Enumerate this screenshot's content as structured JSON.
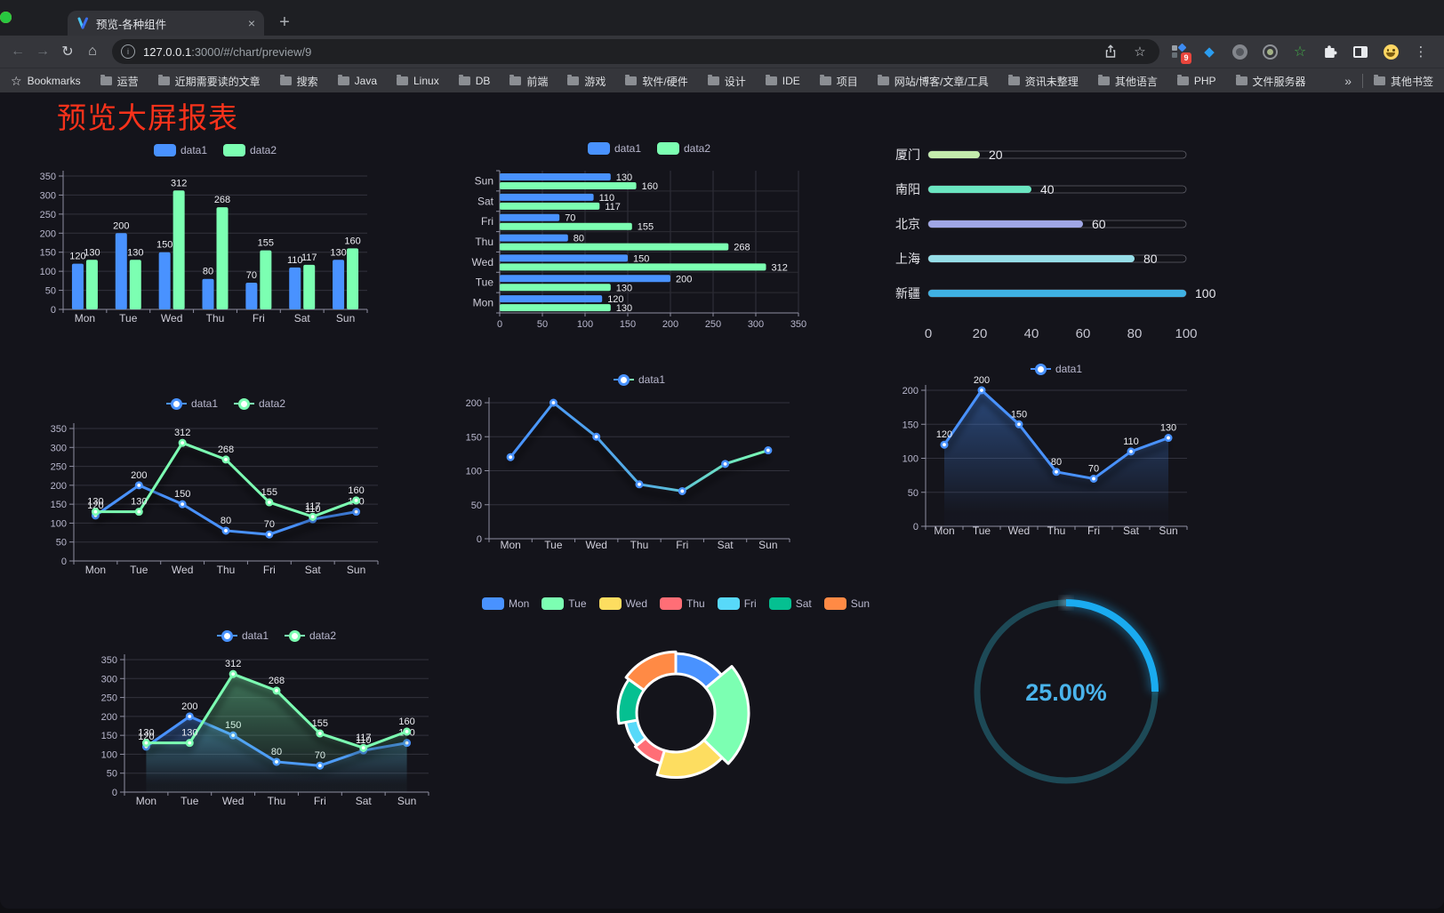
{
  "browser": {
    "window_controls": {
      "close": "#ff5f57",
      "minimize": "#febc2e",
      "zoom": "#28c840"
    },
    "tab": {
      "title": "预览-各种组件",
      "close_icon": "×"
    },
    "new_tab_icon": "+",
    "icons": {
      "back": "←",
      "forward": "→",
      "reload": "↻",
      "home": "⌂",
      "star": "☆",
      "green_star": "☆",
      "gem": "◆",
      "menu": "⋮",
      "info": "i"
    },
    "toolbar": {
      "url_host": "127.0.0.1",
      "url_path": ":3000/#/chart/preview/9",
      "extension_badge": "9"
    },
    "bookmarks_bar": {
      "label": "Bookmarks",
      "folders": [
        "运营",
        "近期需要读的文章",
        "搜索",
        "Java",
        "Linux",
        "DB",
        "前端",
        "游戏",
        "软件/硬件",
        "设计",
        "IDE",
        "项目",
        "网站/博客/文章/工具",
        "资讯未整理",
        "其他语言",
        "PHP",
        "文件服务器"
      ],
      "overflow": "»",
      "other_bookmarks": "其他书签"
    }
  },
  "page": {
    "title": "预览大屏报表",
    "title_color": "#f8321b",
    "background": "#14141b"
  },
  "chart_data": [
    {
      "id": "bar-vertical-grouped",
      "type": "bar",
      "categories": [
        "Mon",
        "Tue",
        "Wed",
        "Thu",
        "Fri",
        "Sat",
        "Sun"
      ],
      "series": [
        {
          "name": "data1",
          "color": "#4992ff",
          "values": [
            120,
            200,
            150,
            80,
            70,
            110,
            130
          ]
        },
        {
          "name": "data2",
          "color": "#7cffb2",
          "values": [
            130,
            130,
            312,
            268,
            155,
            117,
            160
          ]
        }
      ],
      "ylim": [
        0,
        350
      ],
      "yticks": [
        0,
        50,
        100,
        150,
        200,
        250,
        300,
        350
      ],
      "legend_position": "top",
      "grid": true,
      "point_labels": true
    },
    {
      "id": "bar-horizontal-grouped",
      "type": "bar",
      "orientation": "horizontal",
      "categories": [
        "Mon",
        "Tue",
        "Wed",
        "Thu",
        "Fri",
        "Sat",
        "Sun"
      ],
      "series": [
        {
          "name": "data1",
          "color": "#4992ff",
          "values": [
            120,
            200,
            150,
            80,
            70,
            110,
            130
          ]
        },
        {
          "name": "data2",
          "color": "#7cffb2",
          "values": [
            130,
            130,
            312,
            268,
            155,
            117,
            160
          ]
        }
      ],
      "xlim": [
        0,
        350
      ],
      "xticks": [
        0,
        50,
        100,
        150,
        200,
        250,
        300,
        350
      ],
      "legend_position": "top",
      "grid": true,
      "point_labels": true
    },
    {
      "id": "progress-bars",
      "type": "bar",
      "orientation": "horizontal",
      "categories": [
        "厦门",
        "南阳",
        "北京",
        "上海",
        "新疆"
      ],
      "values": [
        20,
        40,
        60,
        80,
        100
      ],
      "colors": [
        "#c4ebad",
        "#6be6c1",
        "#a0a7e6",
        "#96dee8",
        "#3fb1e3"
      ],
      "xlim": [
        0,
        100
      ],
      "xticks": [
        0,
        20,
        40,
        60,
        80,
        100
      ],
      "grid": false,
      "point_labels": true
    },
    {
      "id": "line-two-series",
      "type": "line",
      "categories": [
        "Mon",
        "Tue",
        "Wed",
        "Thu",
        "Fri",
        "Sat",
        "Sun"
      ],
      "series": [
        {
          "name": "data1",
          "color": "#4992ff",
          "values": [
            120,
            200,
            150,
            80,
            70,
            110,
            130
          ]
        },
        {
          "name": "data2",
          "color": "#7cffb2",
          "values": [
            130,
            130,
            312,
            268,
            155,
            117,
            160
          ]
        }
      ],
      "ylim": [
        0,
        350
      ],
      "yticks": [
        0,
        50,
        100,
        150,
        200,
        250,
        300,
        350
      ],
      "legend_position": "top",
      "grid": true,
      "point_labels": true
    },
    {
      "id": "line-gradient",
      "type": "line",
      "categories": [
        "Mon",
        "Tue",
        "Wed",
        "Thu",
        "Fri",
        "Sat",
        "Sun"
      ],
      "series": [
        {
          "name": "data1",
          "color_start": "#4992ff",
          "color_end": "#7cffb2",
          "values": [
            120,
            200,
            150,
            80,
            70,
            110,
            130
          ]
        }
      ],
      "ylim": [
        0,
        200
      ],
      "yticks": [
        0,
        50,
        100,
        150,
        200
      ],
      "legend_position": "top",
      "grid": true,
      "point_labels": false
    },
    {
      "id": "area-single",
      "type": "area",
      "categories": [
        "Mon",
        "Tue",
        "Wed",
        "Thu",
        "Fri",
        "Sat",
        "Sun"
      ],
      "series": [
        {
          "name": "data1",
          "color": "#4992ff",
          "values": [
            120,
            200,
            150,
            80,
            70,
            110,
            130
          ]
        }
      ],
      "ylim": [
        0,
        200
      ],
      "yticks": [
        0,
        50,
        100,
        150,
        200
      ],
      "legend_position": "top",
      "grid": true,
      "point_labels": true
    },
    {
      "id": "area-two-series",
      "type": "area",
      "categories": [
        "Mon",
        "Tue",
        "Wed",
        "Thu",
        "Fri",
        "Sat",
        "Sun"
      ],
      "series": [
        {
          "name": "data1",
          "color": "#4992ff",
          "values": [
            120,
            200,
            150,
            80,
            70,
            110,
            130
          ]
        },
        {
          "name": "data2",
          "color": "#7cffb2",
          "values": [
            130,
            130,
            312,
            268,
            155,
            117,
            160
          ]
        }
      ],
      "ylim": [
        0,
        350
      ],
      "yticks": [
        0,
        50,
        100,
        150,
        200,
        250,
        300,
        350
      ],
      "legend_position": "top",
      "grid": true,
      "point_labels": true
    },
    {
      "id": "rose-donut",
      "type": "pie",
      "rose": true,
      "donut": true,
      "categories": [
        "Mon",
        "Tue",
        "Wed",
        "Thu",
        "Fri",
        "Sat",
        "Sun"
      ],
      "values": [
        120,
        200,
        150,
        80,
        70,
        110,
        130
      ],
      "colors": [
        "#4992ff",
        "#7cffb2",
        "#fddd60",
        "#ff6e76",
        "#58d9f9",
        "#05c091",
        "#ff8a45"
      ],
      "legend_position": "top"
    },
    {
      "id": "progress-gauge",
      "type": "gauge",
      "value": 25,
      "label": "25.00%",
      "color": "#1aabf0",
      "track_color": "#1d4956",
      "text_color": "#4ab4ec"
    }
  ]
}
